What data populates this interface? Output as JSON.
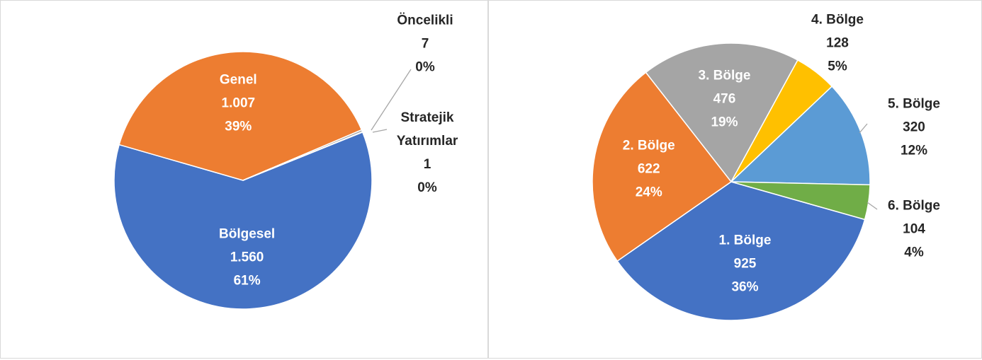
{
  "chart_data": [
    {
      "type": "pie",
      "categories": [
        "Bölgesel",
        "Genel",
        "Öncelikli",
        "Stratejik Yatırımlar"
      ],
      "values": [
        1560,
        1007,
        7,
        1
      ],
      "value_labels": [
        "1.560",
        "1.007",
        "7",
        "1"
      ],
      "percent_labels": [
        "61%",
        "39%",
        "0%",
        "0%"
      ],
      "colors": [
        "#4472c4",
        "#ed7d31",
        "#a5a5a5",
        "#ffc000"
      ]
    },
    {
      "type": "pie",
      "categories": [
        "1. Bölge",
        "2. Bölge",
        "3. Bölge",
        "4. Bölge",
        "5. Bölge",
        "6. Bölge"
      ],
      "values": [
        925,
        622,
        476,
        128,
        320,
        104
      ],
      "percent_labels": [
        "36%",
        "24%",
        "19%",
        "5%",
        "12%",
        "4%"
      ],
      "colors": [
        "#4472c4",
        "#ed7d31",
        "#a5a5a5",
        "#ffc000",
        "#5b9bd5",
        "#70ad47"
      ]
    }
  ]
}
